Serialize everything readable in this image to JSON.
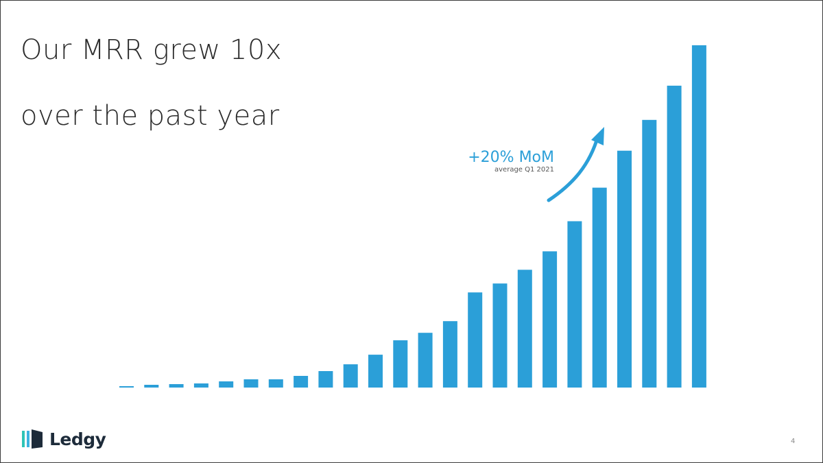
{
  "slide": {
    "title_line1": "Our MRR grew 10x",
    "title_line2": "over the past year",
    "page_number": "4"
  },
  "logo": {
    "name": "Ledgy",
    "icon": "ledgy-logo-icon",
    "colors": [
      "#2ec4b6",
      "#3bb3e0",
      "#1d2b3a"
    ]
  },
  "annotation": {
    "headline": "+20% MoM",
    "subtext": "average Q1 2021",
    "icon": "curved-arrow-up-icon"
  },
  "colors": {
    "bar": "#2b9fd8",
    "annotation": "#2b9fd8",
    "title": "#2b2b2b"
  },
  "chart_data": {
    "type": "bar",
    "title": "",
    "xlabel": "",
    "ylabel": "",
    "ylim": [
      0,
      100
    ],
    "grid": false,
    "legend": "none",
    "values": [
      0.4,
      0.8,
      1.0,
      1.2,
      1.8,
      2.4,
      2.4,
      3.4,
      4.8,
      6.8,
      9.6,
      13.8,
      16.0,
      19.4,
      27.8,
      30.4,
      34.4,
      39.8,
      48.6,
      58.4,
      69.2,
      78.2,
      88.2,
      100
    ]
  }
}
